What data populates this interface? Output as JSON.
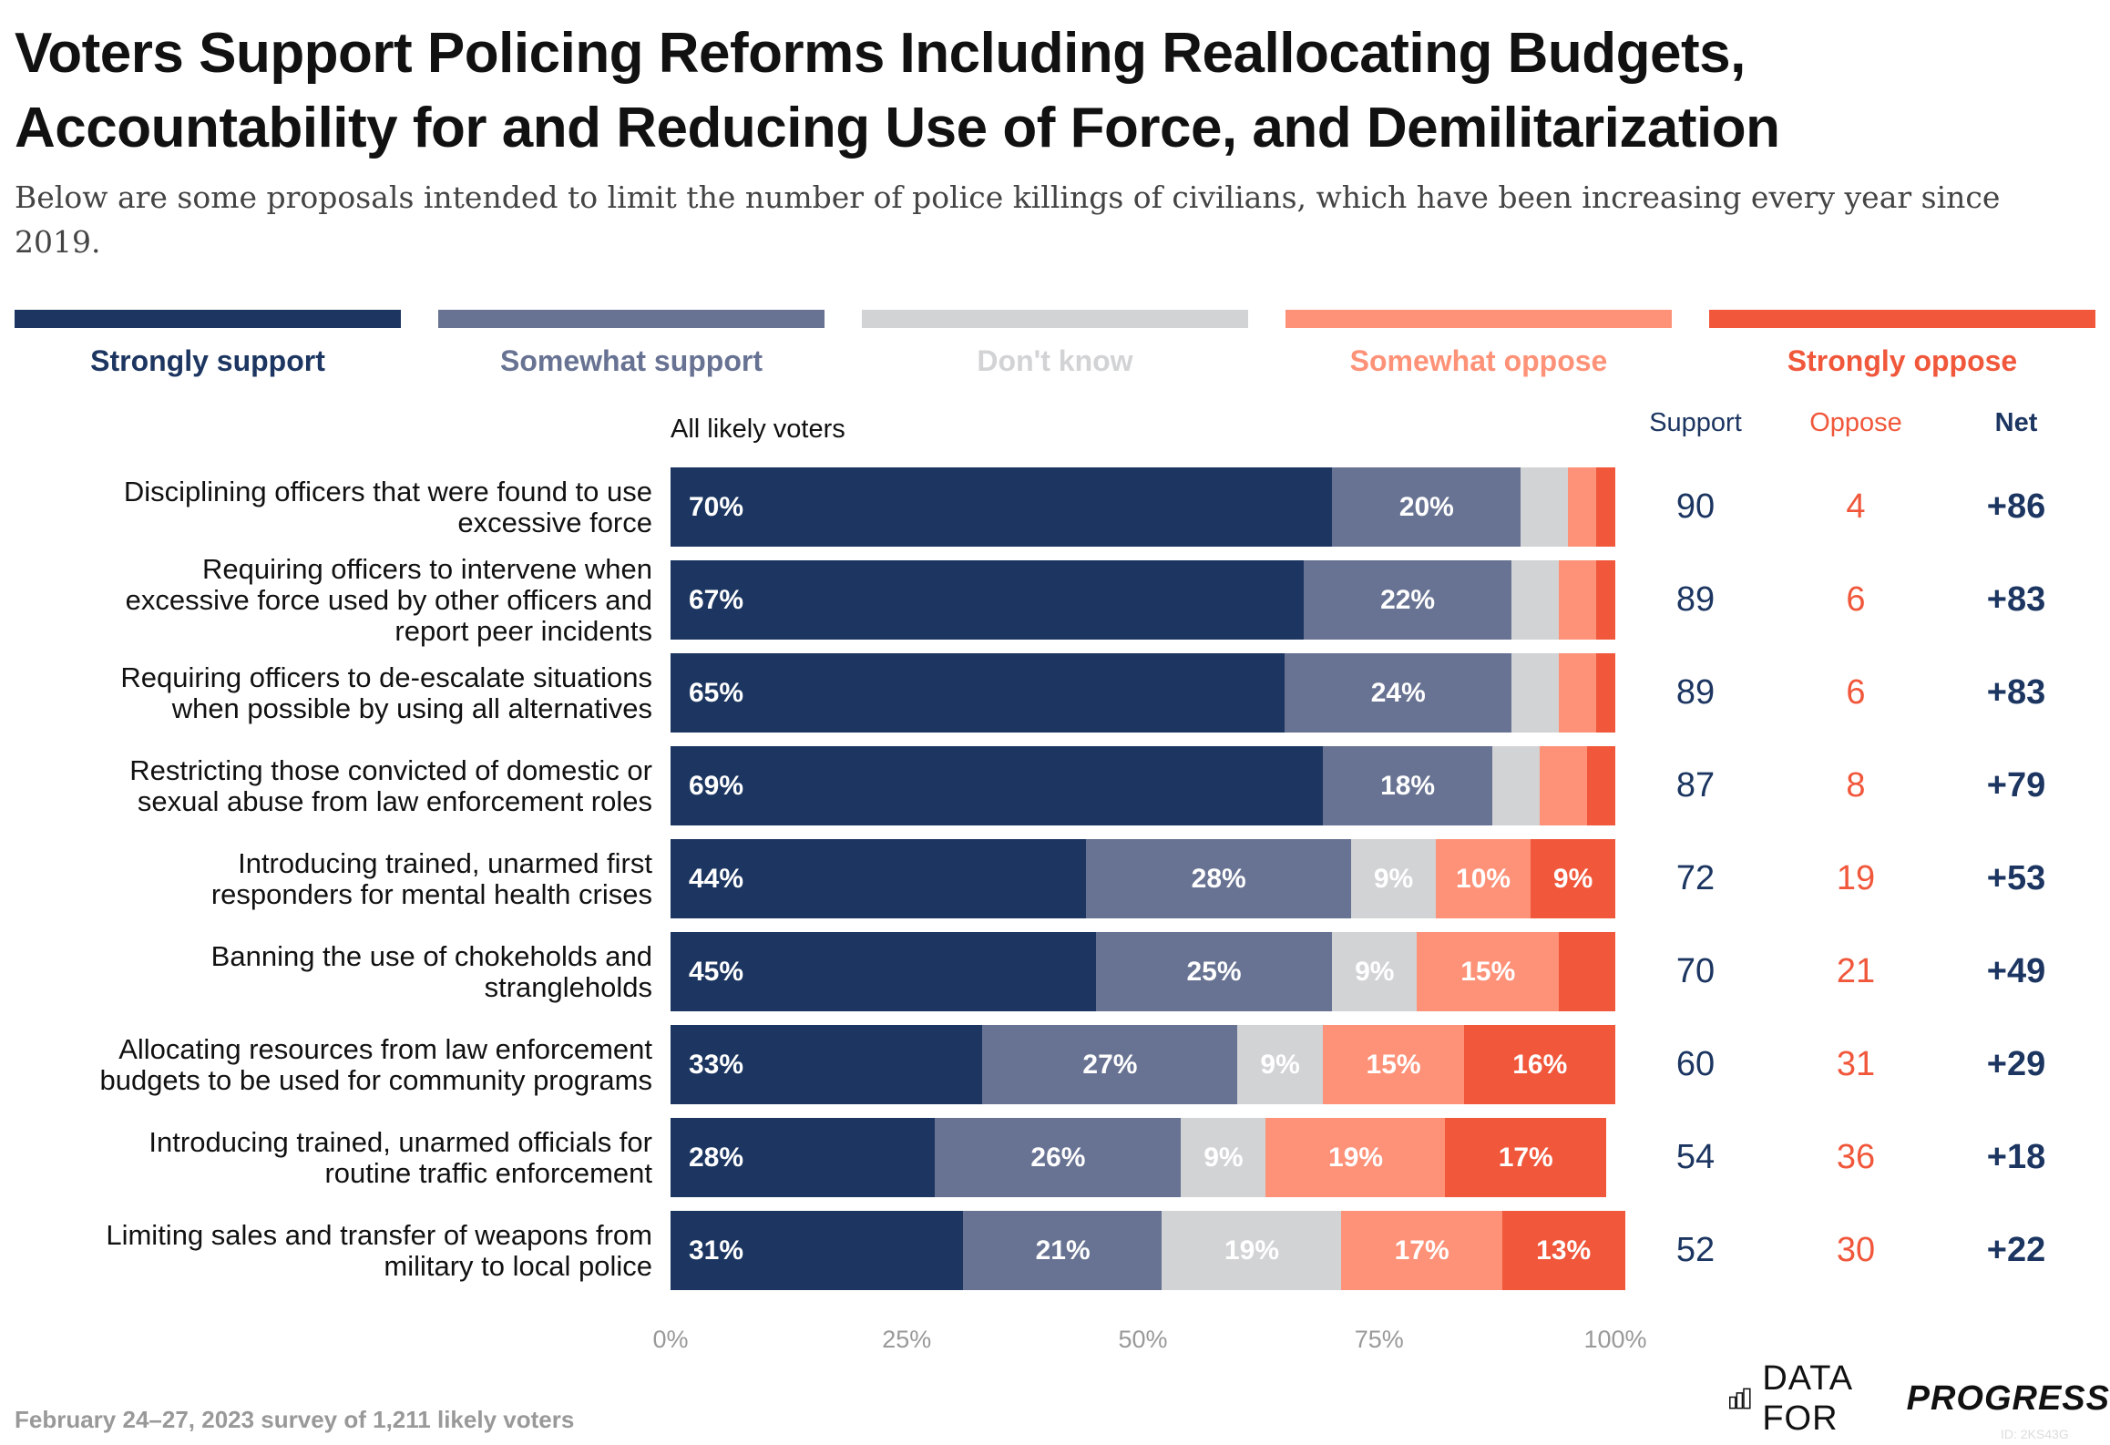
{
  "title": "Voters Support Policing Reforms Including Reallocating Budgets, Accountability for and Reducing Use of Force, and Demilitarization",
  "subtitle": "Below are some proposals intended to limit the number of police killings of civilians, which have been increasing every year since 2019.",
  "colors": {
    "strongly_support": "#1c3661",
    "somewhat_support": "#687393",
    "dont_know": "#d1d3d4",
    "somewhat_oppose": "#fe9278",
    "strongly_oppose": "#f0573b"
  },
  "legend": [
    "Strongly support",
    "Somewhat support",
    "Don't know",
    "Somewhat oppose",
    "Strongly oppose"
  ],
  "group_label": "All likely voters",
  "column_headers": {
    "support": "Support",
    "oppose": "Oppose",
    "net": "Net"
  },
  "chart_data": {
    "type": "bar",
    "orientation": "horizontal-stacked-100",
    "xlim": [
      0,
      100
    ],
    "x_ticks": [
      "0%",
      "25%",
      "50%",
      "75%",
      "100%"
    ],
    "series": [
      {
        "name": "Strongly support",
        "values": [
          70,
          67,
          65,
          69,
          44,
          45,
          33,
          28,
          31
        ]
      },
      {
        "name": "Somewhat support",
        "values": [
          20,
          22,
          24,
          18,
          28,
          25,
          27,
          26,
          21
        ]
      },
      {
        "name": "Don't know",
        "values": [
          5,
          5,
          5,
          5,
          9,
          9,
          9,
          9,
          19
        ]
      },
      {
        "name": "Somewhat oppose",
        "values": [
          3,
          4,
          4,
          5,
          10,
          15,
          15,
          19,
          17
        ]
      },
      {
        "name": "Strongly oppose",
        "values": [
          2,
          2,
          2,
          3,
          9,
          6,
          16,
          17,
          13
        ]
      }
    ],
    "labels_shown": [
      [
        "70%",
        "20%",
        "",
        "",
        ""
      ],
      [
        "67%",
        "22%",
        "",
        "",
        ""
      ],
      [
        "65%",
        "24%",
        "",
        "",
        ""
      ],
      [
        "69%",
        "18%",
        "",
        "",
        ""
      ],
      [
        "44%",
        "28%",
        "9%",
        "10%",
        "9%"
      ],
      [
        "45%",
        "25%",
        "9%",
        "15%",
        ""
      ],
      [
        "33%",
        "27%",
        "9%",
        "15%",
        "16%"
      ],
      [
        "28%",
        "26%",
        "9%",
        "19%",
        "17%"
      ],
      [
        "31%",
        "21%",
        "19%",
        "17%",
        "13%"
      ]
    ],
    "categories": [
      "Disciplining officers that were found to use excessive force",
      "Requiring officers to intervene when excessive force used by other officers and report peer incidents",
      "Requiring officers to de-escalate situations when possible by using all alternatives",
      "Restricting those convicted of domestic or sexual abuse from law enforcement roles",
      "Introducing trained, unarmed first responders for mental health crises",
      "Banning the use of chokeholds and strangleholds",
      "Allocating resources from law enforcement budgets to be used for community programs",
      "Introducing trained, unarmed officials for routine traffic enforcement",
      "Limiting sales and transfer of weapons from military to local police"
    ],
    "category_lines": [
      [
        "Disciplining officers that were found to use",
        "excessive force"
      ],
      [
        "Requiring officers to intervene when",
        "excessive force used by other officers and",
        "report peer incidents"
      ],
      [
        "Requiring officers to de-escalate situations",
        "when possible by using all alternatives"
      ],
      [
        "Restricting those convicted of domestic or",
        "sexual abuse from law enforcement roles"
      ],
      [
        "Introducing trained, unarmed first",
        "responders for mental health crises"
      ],
      [
        "Banning the use of chokeholds and",
        "strangleholds"
      ],
      [
        "Allocating resources from law enforcement",
        "budgets to be used for community programs"
      ],
      [
        "Introducing trained, unarmed officials for",
        "routine traffic enforcement"
      ],
      [
        "Limiting sales and transfer of weapons from",
        "military to local police"
      ]
    ],
    "support": [
      "90",
      "89",
      "89",
      "87",
      "72",
      "70",
      "60",
      "54",
      "52"
    ],
    "oppose": [
      "4",
      "6",
      "6",
      "8",
      "19",
      "21",
      "31",
      "36",
      "30"
    ],
    "net": [
      "+86",
      "+83",
      "+83",
      "+79",
      "+53",
      "+49",
      "+29",
      "+18",
      "+22"
    ]
  },
  "footer": "February 24–27, 2023 survey of 1,211 likely voters",
  "logo": {
    "text_regular": "DATA FOR",
    "text_bold": "PROGRESS"
  },
  "chart_id": "ID: 2KS43G"
}
